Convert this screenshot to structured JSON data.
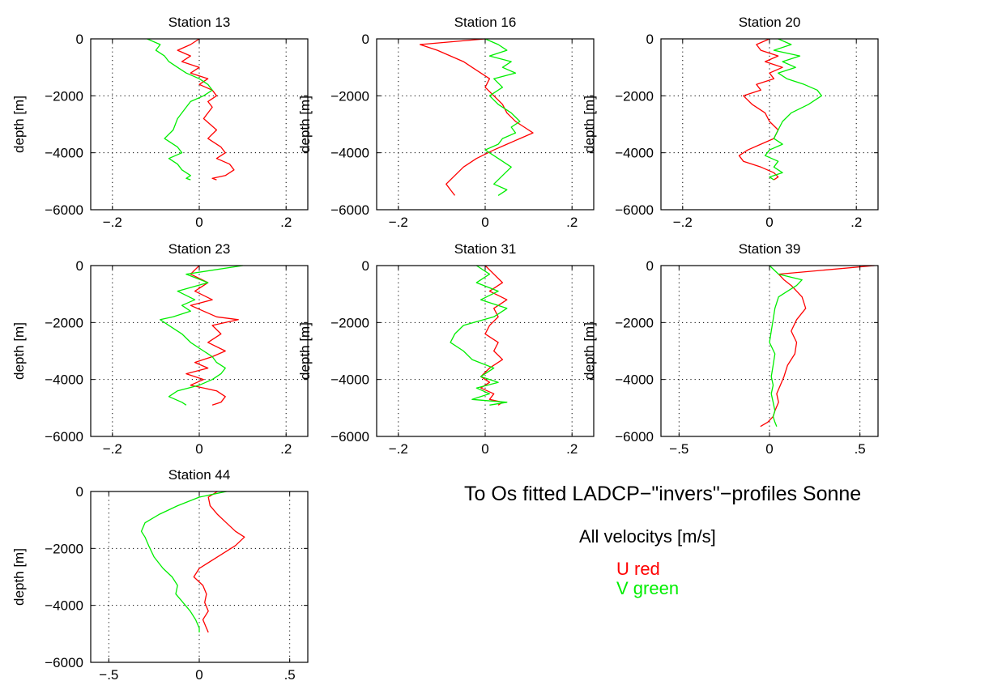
{
  "annotations": {
    "title": "To Os fitted LADCP−\"invers\"−profiles Sonne",
    "subtitle": "All velocitys [m/s]",
    "legend_u": "U red",
    "legend_v": "V green"
  },
  "colors": {
    "u": "#ff0000",
    "v": "#00ee00",
    "axes": "#000000",
    "grid": "#000000"
  },
  "chart_data": [
    {
      "type": "line",
      "title": "Station 13",
      "xlabel": "",
      "ylabel": "depth [m]",
      "xlim": [
        -0.25,
        0.25
      ],
      "ylim": [
        -6000,
        0
      ],
      "xticks": [
        -0.2,
        0,
        0.2
      ],
      "yticks": [
        0,
        -2000,
        -4000,
        -6000
      ],
      "grid": true,
      "series": [
        {
          "values_key": "U",
          "color": "#ff0000",
          "x": [
            0.0,
            -0.02,
            -0.05,
            -0.02,
            -0.04,
            0.0,
            -0.02,
            0.02,
            0.0,
            0.03,
            0.04,
            0.02,
            0.03,
            0.01,
            0.04,
            0.02,
            0.05,
            0.06,
            0.04,
            0.07,
            0.08,
            0.06,
            0.03,
            0.04
          ],
          "y": [
            0,
            -200,
            -400,
            -600,
            -800,
            -1000,
            -1200,
            -1400,
            -1600,
            -1800,
            -2000,
            -2200,
            -2400,
            -2800,
            -3200,
            -3500,
            -3800,
            -4000,
            -4200,
            -4400,
            -4600,
            -4800,
            -4900,
            -4950
          ]
        },
        {
          "values_key": "V",
          "color": "#00ee00",
          "x": [
            -0.12,
            -0.09,
            -0.1,
            -0.08,
            -0.07,
            -0.05,
            -0.03,
            0.0,
            0.02,
            0.03,
            0.01,
            -0.02,
            -0.03,
            -0.05,
            -0.06,
            -0.08,
            -0.05,
            -0.04,
            -0.07,
            -0.05,
            -0.04,
            -0.02,
            -0.03,
            -0.02
          ],
          "y": [
            0,
            -200,
            -400,
            -600,
            -800,
            -1000,
            -1200,
            -1400,
            -1600,
            -1800,
            -2000,
            -2200,
            -2400,
            -2800,
            -3200,
            -3500,
            -3800,
            -4000,
            -4200,
            -4400,
            -4600,
            -4800,
            -4900,
            -4950
          ]
        }
      ]
    },
    {
      "type": "line",
      "title": "Station 16",
      "xlabel": "",
      "ylabel": "depth [m]",
      "xlim": [
        -0.25,
        0.25
      ],
      "ylim": [
        -6000,
        0
      ],
      "xticks": [
        -0.2,
        0,
        0.2
      ],
      "yticks": [
        0,
        -2000,
        -4000,
        -6000
      ],
      "grid": true,
      "series": [
        {
          "values_key": "U",
          "color": "#ff0000",
          "x": [
            0.0,
            -0.15,
            -0.11,
            -0.08,
            -0.05,
            -0.03,
            -0.01,
            0.01,
            0.0,
            0.02,
            0.04,
            0.05,
            0.07,
            0.09,
            0.11,
            0.08,
            0.05,
            0.02,
            -0.02,
            -0.05,
            -0.07,
            -0.09,
            -0.08,
            -0.07
          ],
          "y": [
            0,
            -200,
            -400,
            -600,
            -800,
            -1000,
            -1200,
            -1400,
            -1700,
            -2000,
            -2300,
            -2600,
            -2900,
            -3100,
            -3300,
            -3500,
            -3700,
            -3900,
            -4200,
            -4500,
            -4800,
            -5100,
            -5300,
            -5500
          ]
        },
        {
          "values_key": "V",
          "color": "#00ee00",
          "x": [
            0.0,
            0.03,
            0.05,
            0.01,
            0.06,
            0.04,
            0.07,
            0.02,
            0.04,
            0.01,
            0.03,
            0.06,
            0.08,
            0.06,
            0.07,
            0.04,
            0.03,
            0.0,
            0.03,
            0.06,
            0.04,
            0.02,
            0.05,
            0.03
          ],
          "y": [
            0,
            -200,
            -400,
            -600,
            -800,
            -1000,
            -1200,
            -1400,
            -1700,
            -2000,
            -2300,
            -2600,
            -2900,
            -3100,
            -3300,
            -3500,
            -3700,
            -3900,
            -4200,
            -4500,
            -4800,
            -5100,
            -5300,
            -5500
          ]
        }
      ]
    },
    {
      "type": "line",
      "title": "Station 20",
      "xlabel": "",
      "ylabel": "depth [m]",
      "xlim": [
        -0.25,
        0.25
      ],
      "ylim": [
        -6000,
        0
      ],
      "xticks": [
        -0.2,
        0,
        0.2
      ],
      "yticks": [
        0,
        -2000,
        -4000,
        -6000
      ],
      "grid": true,
      "series": [
        {
          "values_key": "U",
          "color": "#ff0000",
          "x": [
            0.0,
            -0.03,
            -0.02,
            0.02,
            -0.01,
            0.03,
            0.0,
            0.01,
            -0.03,
            -0.02,
            -0.06,
            -0.04,
            -0.01,
            0.0,
            0.02,
            0.01,
            -0.02,
            -0.05,
            -0.07,
            -0.06,
            -0.02,
            0.01,
            0.02,
            0.01
          ],
          "y": [
            0,
            -200,
            -400,
            -600,
            -800,
            -1000,
            -1200,
            -1400,
            -1600,
            -1800,
            -2000,
            -2300,
            -2600,
            -2900,
            -3200,
            -3500,
            -3700,
            -3900,
            -4100,
            -4300,
            -4500,
            -4700,
            -4850,
            -4950
          ]
        },
        {
          "values_key": "V",
          "color": "#00ee00",
          "x": [
            0.02,
            0.05,
            0.01,
            0.07,
            0.03,
            0.06,
            0.02,
            0.04,
            0.08,
            0.11,
            0.12,
            0.09,
            0.05,
            0.03,
            0.02,
            0.01,
            0.03,
            0.0,
            -0.01,
            0.02,
            0.01,
            0.03,
            0.0,
            0.01
          ],
          "y": [
            0,
            -200,
            -400,
            -600,
            -800,
            -1000,
            -1200,
            -1400,
            -1600,
            -1800,
            -2000,
            -2300,
            -2600,
            -2900,
            -3200,
            -3500,
            -3700,
            -3900,
            -4100,
            -4300,
            -4500,
            -4700,
            -4850,
            -4950
          ]
        }
      ]
    },
    {
      "type": "line",
      "title": "Station 23",
      "xlabel": "",
      "ylabel": "depth [m]",
      "xlim": [
        -0.25,
        0.25
      ],
      "ylim": [
        -6000,
        0
      ],
      "xticks": [
        -0.2,
        0,
        0.2
      ],
      "yticks": [
        0,
        -2000,
        -4000,
        -6000
      ],
      "grid": true,
      "series": [
        {
          "values_key": "U",
          "color": "#ff0000",
          "x": [
            0.0,
            -0.02,
            0.02,
            -0.01,
            0.03,
            -0.02,
            0.01,
            0.04,
            0.09,
            0.03,
            0.05,
            0.02,
            0.06,
            0.03,
            -0.01,
            0.02,
            -0.03,
            0.01,
            -0.02,
            0.04,
            0.06,
            0.05,
            0.03
          ],
          "y": [
            0,
            -300,
            -600,
            -900,
            -1200,
            -1400,
            -1600,
            -1800,
            -1900,
            -2100,
            -2400,
            -2700,
            -3000,
            -3200,
            -3400,
            -3600,
            -3800,
            -4000,
            -4200,
            -4400,
            -4600,
            -4800,
            -4900
          ]
        },
        {
          "values_key": "V",
          "color": "#00ee00",
          "x": [
            0.1,
            -0.03,
            0.02,
            -0.05,
            -0.01,
            -0.04,
            -0.02,
            -0.06,
            -0.09,
            -0.07,
            -0.04,
            -0.02,
            0.01,
            0.03,
            0.04,
            0.06,
            0.05,
            0.03,
            0.0,
            -0.05,
            -0.07,
            -0.04,
            -0.03
          ],
          "y": [
            0,
            -300,
            -600,
            -900,
            -1200,
            -1400,
            -1600,
            -1800,
            -1900,
            -2100,
            -2400,
            -2700,
            -3000,
            -3200,
            -3400,
            -3600,
            -3800,
            -4000,
            -4200,
            -4400,
            -4600,
            -4800,
            -4900
          ]
        }
      ]
    },
    {
      "type": "line",
      "title": "Station 31",
      "xlabel": "",
      "ylabel": "depth [m]",
      "xlim": [
        -0.25,
        0.25
      ],
      "ylim": [
        -6000,
        0
      ],
      "xticks": [
        -0.2,
        0,
        0.2
      ],
      "yticks": [
        0,
        -2000,
        -4000,
        -6000
      ],
      "grid": true,
      "series": [
        {
          "values_key": "U",
          "color": "#ff0000",
          "x": [
            0.0,
            0.02,
            0.04,
            0.01,
            0.05,
            0.02,
            0.03,
            0.01,
            0.0,
            0.03,
            0.02,
            0.04,
            0.01,
            -0.01,
            0.01,
            -0.01,
            0.02,
            0.01,
            0.04,
            0.03
          ],
          "y": [
            0,
            -300,
            -600,
            -900,
            -1200,
            -1500,
            -1800,
            -2100,
            -2400,
            -2700,
            -3000,
            -3300,
            -3600,
            -3900,
            -4100,
            -4300,
            -4500,
            -4700,
            -4800,
            -4900
          ]
        },
        {
          "values_key": "V",
          "color": "#00ee00",
          "x": [
            -0.02,
            0.01,
            -0.02,
            0.03,
            -0.01,
            0.05,
            0.02,
            -0.05,
            -0.07,
            -0.08,
            -0.05,
            -0.03,
            0.02,
            -0.01,
            0.03,
            -0.02,
            0.01,
            -0.03,
            0.05,
            0.01
          ],
          "y": [
            0,
            -300,
            -600,
            -900,
            -1200,
            -1500,
            -1800,
            -2100,
            -2400,
            -2700,
            -3000,
            -3300,
            -3600,
            -3900,
            -4100,
            -4300,
            -4500,
            -4700,
            -4800,
            -4900
          ]
        }
      ]
    },
    {
      "type": "line",
      "title": "Station 39",
      "xlabel": "",
      "ylabel": "depth [m]",
      "xlim": [
        -0.6,
        0.6
      ],
      "ylim": [
        -6000,
        0
      ],
      "xticks": [
        -0.5,
        0,
        0.5
      ],
      "yticks": [
        0,
        -2000,
        -4000,
        -6000
      ],
      "grid": true,
      "series": [
        {
          "values_key": "U",
          "color": "#ff0000",
          "x": [
            0.58,
            0.05,
            0.08,
            0.12,
            0.15,
            0.18,
            0.2,
            0.15,
            0.12,
            0.15,
            0.14,
            0.1,
            0.08,
            0.06,
            0.04,
            0.05,
            0.03,
            0.02,
            -0.01,
            -0.05
          ],
          "y": [
            0,
            -300,
            -500,
            -700,
            -900,
            -1100,
            -1500,
            -1900,
            -2300,
            -2700,
            -3100,
            -3500,
            -3900,
            -4200,
            -4500,
            -4800,
            -5100,
            -5300,
            -5500,
            -5650
          ]
        },
        {
          "values_key": "V",
          "color": "#00ee00",
          "x": [
            0.0,
            0.05,
            0.18,
            0.15,
            0.1,
            0.05,
            0.03,
            0.02,
            0.01,
            0.0,
            0.03,
            0.02,
            0.01,
            0.02,
            0.01,
            0.02,
            0.03,
            0.02,
            0.03,
            0.04
          ],
          "y": [
            0,
            -300,
            -500,
            -700,
            -900,
            -1100,
            -1500,
            -1900,
            -2300,
            -2700,
            -3100,
            -3500,
            -3900,
            -4200,
            -4500,
            -4800,
            -5100,
            -5300,
            -5500,
            -5650
          ]
        }
      ]
    },
    {
      "type": "line",
      "title": "Station 44",
      "xlabel": "",
      "ylabel": "depth [m]",
      "xlim": [
        -0.6,
        0.6
      ],
      "ylim": [
        -6000,
        0
      ],
      "xticks": [
        -0.5,
        0,
        0.5
      ],
      "yticks": [
        0,
        -2000,
        -4000,
        -6000
      ],
      "grid": true,
      "series": [
        {
          "values_key": "U",
          "color": "#ff0000",
          "x": [
            0.1,
            0.05,
            0.06,
            0.1,
            0.15,
            0.2,
            0.25,
            0.2,
            0.1,
            0.0,
            -0.03,
            0.02,
            0.04,
            0.03,
            0.05,
            0.02,
            0.04,
            0.05
          ],
          "y": [
            0,
            -200,
            -500,
            -800,
            -1100,
            -1400,
            -1600,
            -1900,
            -2300,
            -2700,
            -3000,
            -3300,
            -3600,
            -3900,
            -4200,
            -4500,
            -4800,
            -4950
          ]
        },
        {
          "values_key": "V",
          "color": "#00ee00",
          "x": [
            0.15,
            0.0,
            -0.12,
            -0.22,
            -0.3,
            -0.32,
            -0.3,
            -0.28,
            -0.25,
            -0.2,
            -0.15,
            -0.12,
            -0.13,
            -0.09,
            -0.05,
            -0.02,
            0.0,
            0.0
          ],
          "y": [
            0,
            -200,
            -500,
            -800,
            -1100,
            -1400,
            -1600,
            -1900,
            -2300,
            -2700,
            -3000,
            -3300,
            -3600,
            -3900,
            -4200,
            -4500,
            -4800,
            -4950
          ]
        }
      ]
    }
  ]
}
